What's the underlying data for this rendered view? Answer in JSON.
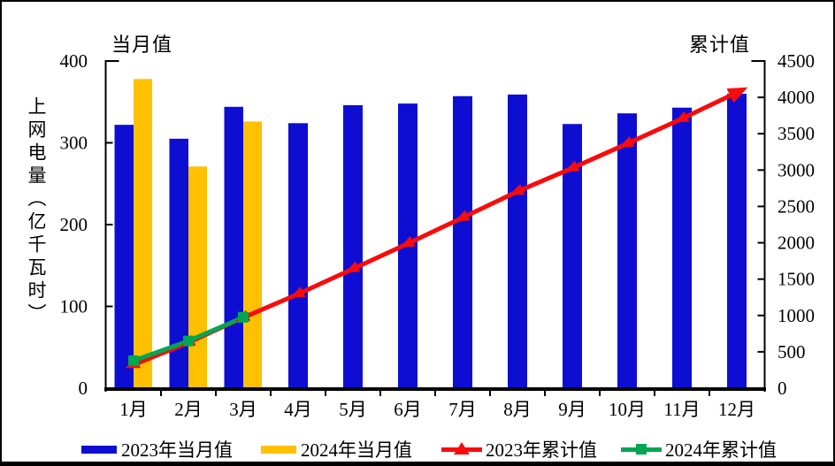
{
  "y_axis_label": "上网电量（亿千瓦时）",
  "chart_data": {
    "type": "combo-bar-line-dual-axis",
    "categories": [
      "1月",
      "2月",
      "3月",
      "4月",
      "5月",
      "6月",
      "7月",
      "8月",
      "9月",
      "10月",
      "11月",
      "12月"
    ],
    "left_axis": {
      "title": "当月值",
      "min": 0,
      "max": 400,
      "step": 100,
      "ticks": [
        400,
        300,
        200,
        100,
        0
      ]
    },
    "right_axis": {
      "title": "累计值",
      "min": 0,
      "max": 4500,
      "step": 500,
      "ticks": [
        4500,
        4000,
        3500,
        3000,
        2500,
        2000,
        1500,
        1000,
        500,
        0
      ]
    },
    "series": [
      {
        "name": "2023年当月值",
        "type": "bar",
        "axis": "left",
        "color": "#0E0ED2",
        "values": [
          322,
          305,
          344,
          324,
          346,
          348,
          357,
          359,
          323,
          336,
          343,
          360
        ]
      },
      {
        "name": "2024年当月值",
        "type": "bar",
        "axis": "left",
        "color": "#FFC000",
        "values": [
          378,
          271,
          326
        ]
      },
      {
        "name": "2023年累计值",
        "type": "line",
        "axis": "right",
        "color": "#F90B0B",
        "marker": "triangle",
        "values": [
          322,
          627,
          971,
          1295,
          1641,
          1989,
          2346,
          2705,
          3028,
          3364,
          3707,
          4067
        ]
      },
      {
        "name": "2024年累计值",
        "type": "line",
        "axis": "right",
        "color": "#00A651",
        "marker": "square",
        "values": [
          378,
          649,
          975
        ]
      }
    ],
    "legend_position": "bottom",
    "grid": false
  }
}
